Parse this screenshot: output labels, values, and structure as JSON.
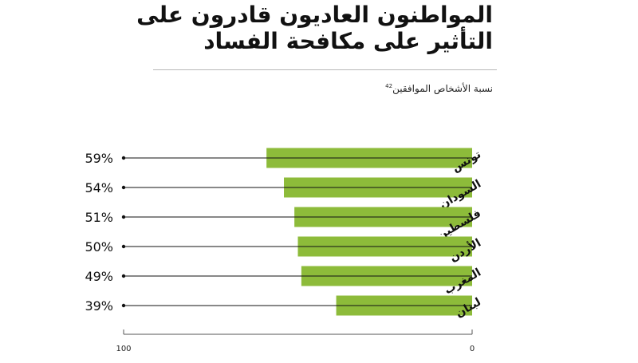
{
  "title_lines": [
    "المواطنون العاديون قادرون على",
    "التأثير على مكافحة الفساد"
  ],
  "subtitle": "نسبة الأشخاص الموافقين",
  "subtitle_note": "42",
  "colors": {
    "bar": "#8dbb3a",
    "line": "#111111",
    "axis": "#555555"
  },
  "chart_data": {
    "type": "bar",
    "orientation": "horizontal",
    "title": "المواطنون العاديون قادرون على التأثير على مكافحة الفساد",
    "subtitle": "نسبة الأشخاص الموافقين",
    "categories": [
      "تونس",
      "السودان",
      "فلسطين",
      "الأردن",
      "المغرب",
      "لبنان"
    ],
    "values": [
      59,
      54,
      51,
      50,
      49,
      39
    ],
    "value_labels": [
      "59%",
      "54%",
      "51%",
      "50%",
      "49%",
      "39%"
    ],
    "x_axis": {
      "direction": "right-to-left",
      "min": 0,
      "max": 100,
      "ticks": [
        "0",
        "100"
      ]
    },
    "grid": false,
    "legend": "none"
  }
}
